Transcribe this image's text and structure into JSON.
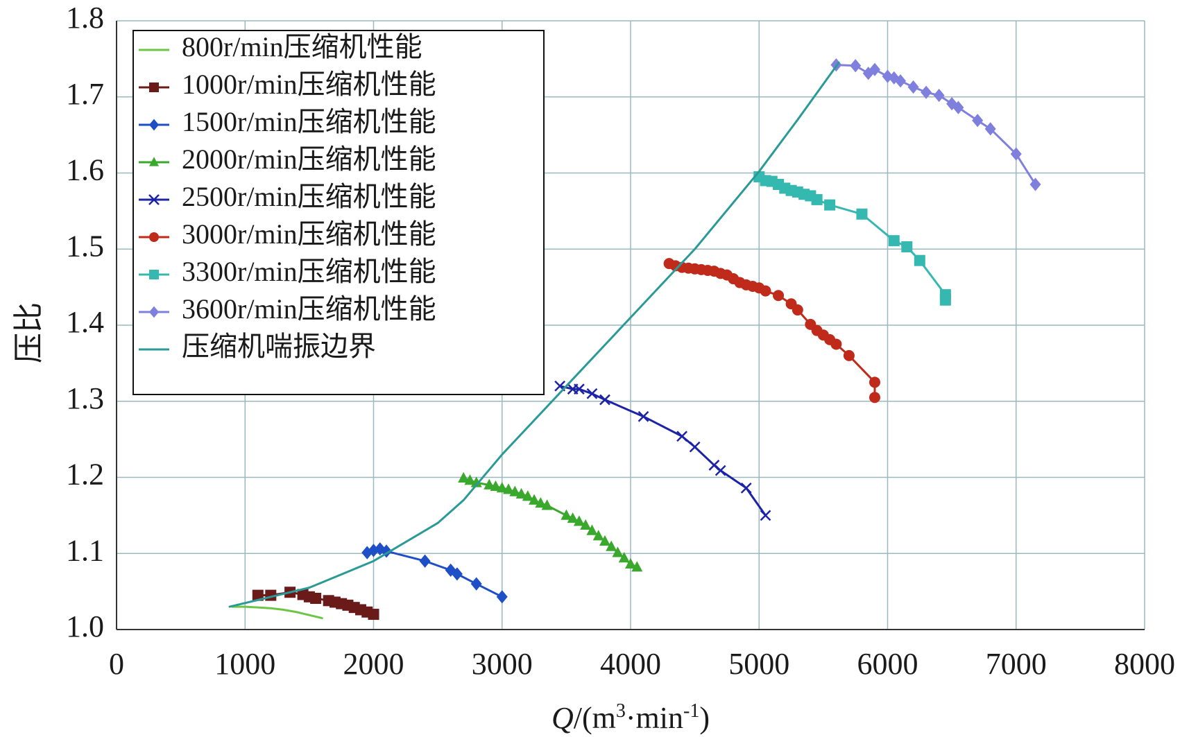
{
  "chart_data": {
    "type": "line",
    "xlabel": "Q/(m³·min⁻¹)",
    "xlabel_parts": {
      "var": "Q",
      "pre": "/(m",
      "sup1": "3",
      "mid": "·min",
      "sup2": "-1",
      "post": ")"
    },
    "ylabel": "压比",
    "xlim": [
      0,
      8000
    ],
    "ylim": [
      1.0,
      1.8
    ],
    "x_ticks": [
      "0",
      "1000",
      "2000",
      "3000",
      "4000",
      "5000",
      "6000",
      "7000",
      "8000"
    ],
    "y_ticks": [
      "1.0",
      "1.1",
      "1.2",
      "1.3",
      "1.4",
      "1.5",
      "1.6",
      "1.7",
      "1.8"
    ],
    "grid": true,
    "legend_position": "top-left",
    "series": [
      {
        "name": "800r/min压缩机性能",
        "color": "#6cc644",
        "marker": "none",
        "line_width": 3,
        "x": [
          900,
          1000,
          1100,
          1200,
          1300,
          1400,
          1500,
          1600
        ],
        "y": [
          1.03,
          1.03,
          1.029,
          1.028,
          1.026,
          1.023,
          1.019,
          1.015
        ]
      },
      {
        "name": "1000r/min压缩机性能",
        "color": "#6b1a1a",
        "marker": "square",
        "line_width": 3,
        "x": [
          1100,
          1200,
          1350,
          1450,
          1500,
          1550,
          1650,
          1700,
          1750,
          1800,
          1850,
          1900,
          1950,
          2000
        ],
        "y": [
          1.045,
          1.045,
          1.049,
          1.046,
          1.043,
          1.041,
          1.038,
          1.036,
          1.034,
          1.032,
          1.029,
          1.026,
          1.023,
          1.02
        ]
      },
      {
        "name": "1500r/min压缩机性能",
        "color": "#1f4fc6",
        "marker": "diamond",
        "line_width": 3,
        "x": [
          1950,
          2000,
          2050,
          2100,
          2400,
          2600,
          2650,
          2800,
          3000
        ],
        "y": [
          1.101,
          1.104,
          1.106,
          1.103,
          1.09,
          1.078,
          1.073,
          1.06,
          1.043
        ]
      },
      {
        "name": "2000r/min压缩机性能",
        "color": "#3aa82c",
        "marker": "triangle",
        "line_width": 3,
        "x": [
          2700,
          2750,
          2800,
          2900,
          2950,
          3000,
          3050,
          3100,
          3150,
          3200,
          3250,
          3300,
          3350,
          3500,
          3550,
          3600,
          3650,
          3700,
          3750,
          3800,
          3850,
          3900,
          3950,
          4000,
          4050
        ],
        "y": [
          1.199,
          1.196,
          1.193,
          1.19,
          1.188,
          1.186,
          1.184,
          1.181,
          1.178,
          1.175,
          1.17,
          1.166,
          1.163,
          1.15,
          1.146,
          1.142,
          1.137,
          1.13,
          1.123,
          1.116,
          1.109,
          1.101,
          1.094,
          1.086,
          1.082
        ]
      },
      {
        "name": "2500r/min压缩机性能",
        "color": "#1c23a6",
        "marker": "x",
        "line_width": 3,
        "x": [
          3450,
          3550,
          3600,
          3700,
          3800,
          4100,
          4400,
          4500,
          4650,
          4700,
          4900,
          5050
        ],
        "y": [
          1.32,
          1.316,
          1.316,
          1.31,
          1.302,
          1.28,
          1.254,
          1.24,
          1.216,
          1.209,
          1.186,
          1.15
        ]
      },
      {
        "name": "3000r/min压缩机性能",
        "color": "#c02a1a",
        "marker": "circle",
        "line_width": 3,
        "x": [
          4300,
          4350,
          4400,
          4450,
          4500,
          4550,
          4600,
          4650,
          4700,
          4750,
          4800,
          4850,
          4900,
          4950,
          5000,
          5050,
          5150,
          5250,
          5300,
          5400,
          5450,
          5500,
          5550,
          5600,
          5700,
          5900,
          5900
        ],
        "y": [
          1.481,
          1.478,
          1.476,
          1.475,
          1.474,
          1.473,
          1.472,
          1.471,
          1.468,
          1.466,
          1.461,
          1.456,
          1.453,
          1.451,
          1.449,
          1.445,
          1.439,
          1.428,
          1.42,
          1.401,
          1.393,
          1.387,
          1.381,
          1.375,
          1.36,
          1.325,
          1.305
        ]
      },
      {
        "name": "3300r/min压缩机性能",
        "color": "#34b8b0",
        "marker": "square",
        "line_width": 3,
        "x": [
          5000,
          5050,
          5100,
          5150,
          5200,
          5250,
          5300,
          5350,
          5400,
          5450,
          5550,
          5800,
          6050,
          6150,
          6250,
          6450,
          6450
        ],
        "y": [
          1.595,
          1.59,
          1.589,
          1.585,
          1.58,
          1.577,
          1.575,
          1.572,
          1.57,
          1.565,
          1.558,
          1.546,
          1.511,
          1.503,
          1.485,
          1.44,
          1.433
        ]
      },
      {
        "name": "3600r/min压缩机性能",
        "color": "#7f80de",
        "marker": "diamond",
        "line_width": 3,
        "x": [
          5600,
          5750,
          5850,
          5900,
          6000,
          6050,
          6100,
          6200,
          6300,
          6400,
          6500,
          6550,
          6700,
          6800,
          7000,
          7150
        ],
        "y": [
          1.742,
          1.741,
          1.731,
          1.736,
          1.727,
          1.725,
          1.721,
          1.713,
          1.706,
          1.702,
          1.691,
          1.686,
          1.669,
          1.658,
          1.625,
          1.585
        ]
      },
      {
        "name": "压缩机喘振边界",
        "color": "#2a9a96",
        "marker": "none",
        "line_width": 3,
        "x": [
          880,
          1500,
          2000,
          2500,
          2700,
          3000,
          3500,
          4000,
          4500,
          5000,
          5300,
          5620
        ],
        "y": [
          1.03,
          1.055,
          1.09,
          1.14,
          1.17,
          1.23,
          1.32,
          1.41,
          1.5,
          1.602,
          1.67,
          1.745
        ]
      }
    ]
  }
}
